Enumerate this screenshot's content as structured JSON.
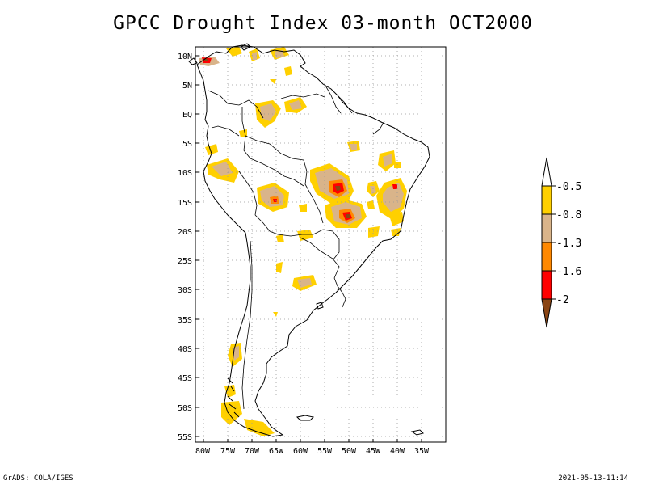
{
  "title": "GPCC Drought Index 03-month OCT2000",
  "axes": {
    "lat_labels": [
      "10N",
      "5N",
      "EQ",
      "5S",
      "10S",
      "15S",
      "20S",
      "25S",
      "30S",
      "35S",
      "40S",
      "45S",
      "50S",
      "55S"
    ],
    "lon_labels": [
      "80W",
      "75W",
      "70W",
      "65W",
      "60W",
      "55W",
      "50W",
      "45W",
      "40W",
      "35W"
    ]
  },
  "colorbar": {
    "labels": [
      "-0.5",
      "-0.8",
      "-1.3",
      "-1.6",
      "-2"
    ],
    "colors": {
      "top": "#ffffff",
      "yellow": "#ffd000",
      "tan": "#d9b48a",
      "orange": "#ff8800",
      "red": "#ff0000",
      "brown": "#8b4513"
    }
  },
  "footer": {
    "left": "GrADS: COLA/IGES",
    "right": "2021-05-13-11:14"
  }
}
